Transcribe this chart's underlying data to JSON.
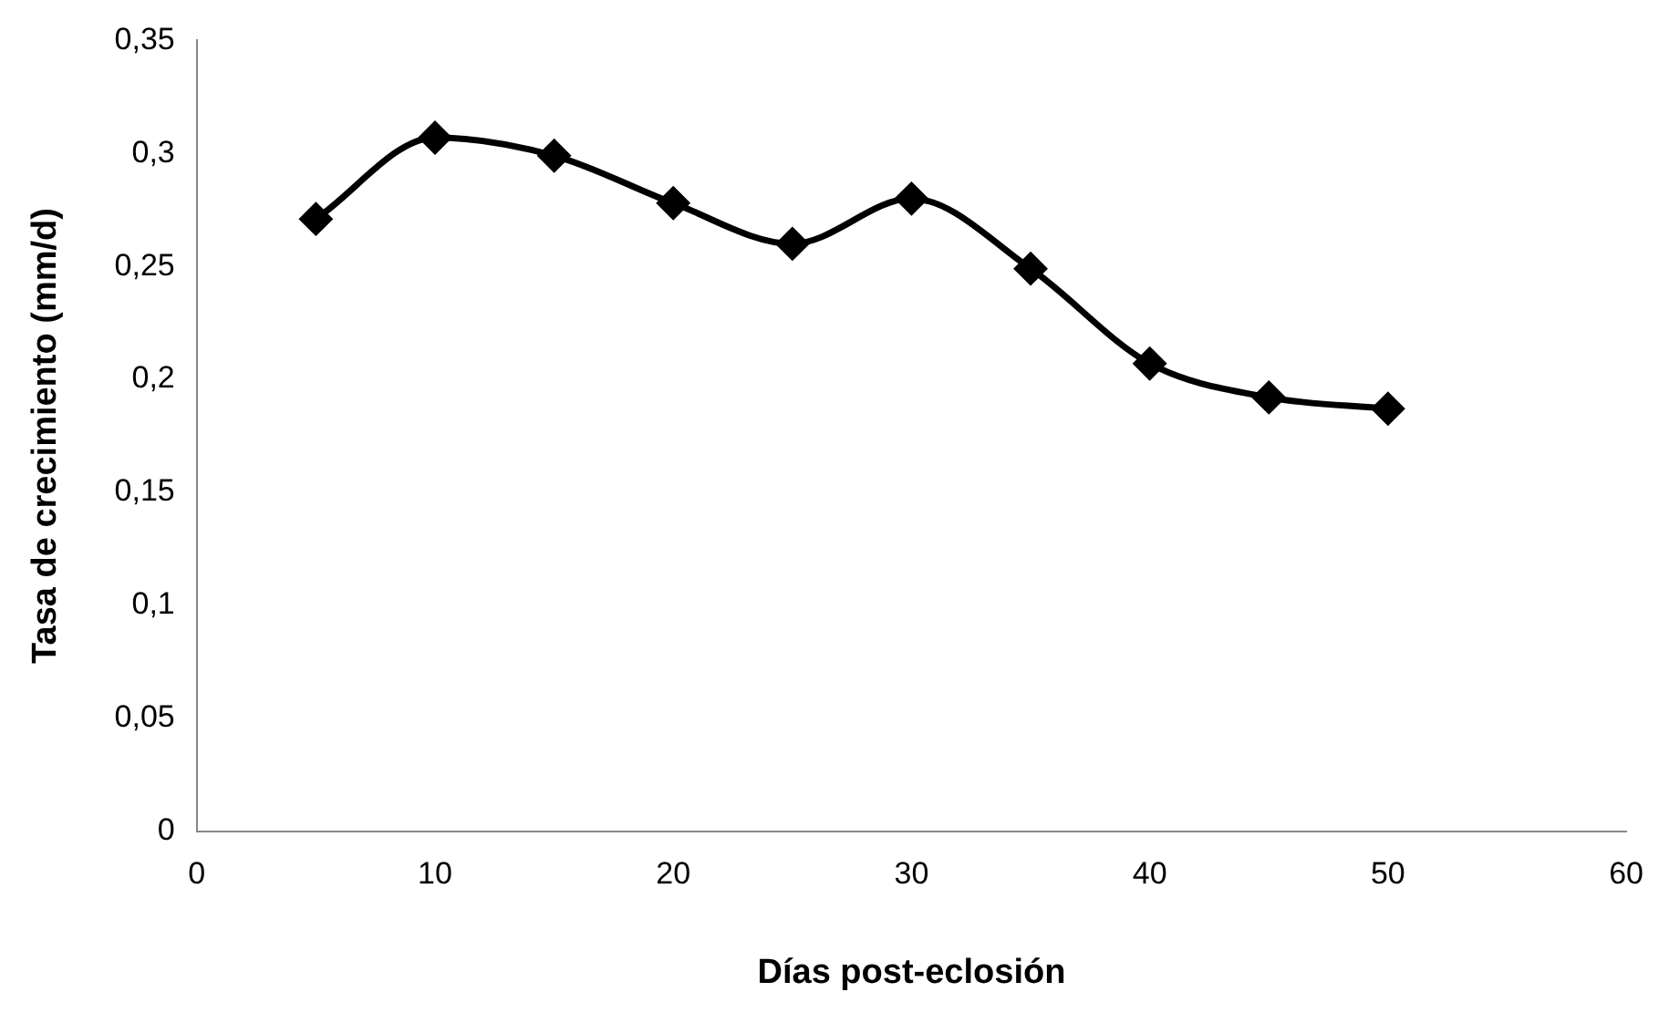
{
  "chart_data": {
    "type": "line",
    "xlabel": "Días post-eclosión",
    "ylabel": "Tasa de crecimiento (mm/d)",
    "x": [
      5,
      10,
      15,
      20,
      25,
      30,
      35,
      40,
      45,
      50
    ],
    "series": [
      {
        "color": "#000000",
        "values": [
          0.271,
          0.307,
          0.299,
          0.278,
          0.26,
          0.28,
          0.249,
          0.207,
          0.192,
          0.187
        ]
      }
    ],
    "xlim": [
      0,
      60
    ],
    "xticks": [
      0,
      10,
      20,
      30,
      40,
      50,
      60
    ],
    "ylim": [
      0,
      0.35
    ],
    "yticks": [
      0,
      {
        "value": 0.05,
        "label": "0,05"
      },
      {
        "value": 0.1,
        "label": "0,1"
      },
      {
        "value": 0.15,
        "label": "0,15"
      },
      {
        "value": 0.2,
        "label": "0,2"
      },
      {
        "value": 0.25,
        "label": "0,25"
      },
      {
        "value": 0.3,
        "label": "0,3"
      },
      {
        "value": 0.35,
        "label": "0,35"
      }
    ],
    "grid": false,
    "legend": false,
    "marker": "diamond",
    "line_style": "solid"
  }
}
